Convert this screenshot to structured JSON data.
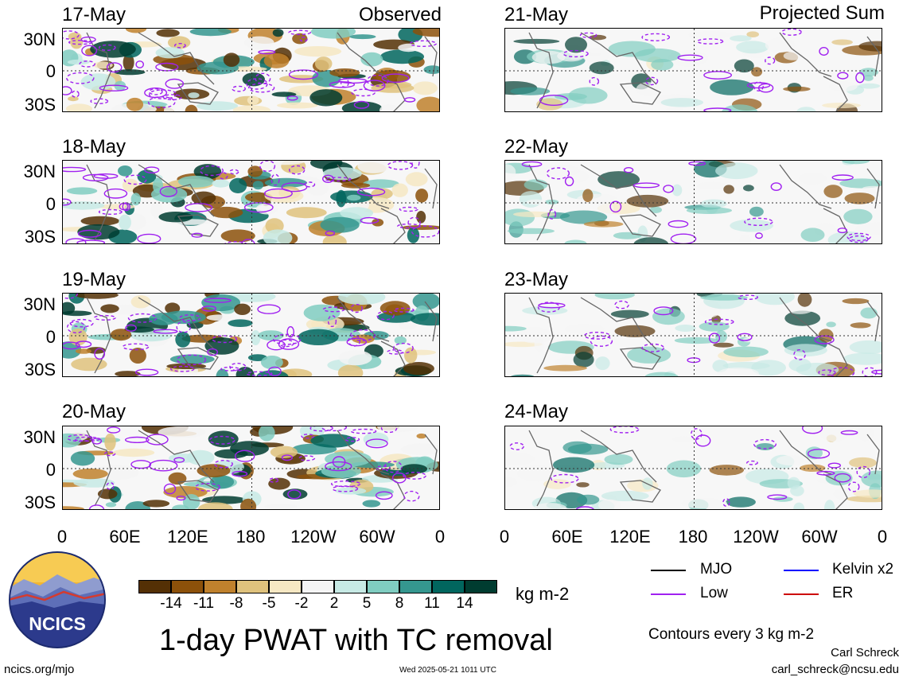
{
  "chart_data": {
    "type": "heatmap",
    "title": "1-day PWAT with TC removal",
    "units": "kg m-2",
    "contour_note": "Contours every 3 kg m-2",
    "columns": [
      {
        "label": "Observed",
        "dates": [
          "17-May",
          "18-May",
          "19-May",
          "20-May"
        ]
      },
      {
        "label": "Projected Sum",
        "dates": [
          "21-May",
          "22-May",
          "23-May",
          "24-May"
        ]
      }
    ],
    "y_ticks": [
      "30N",
      "0",
      "30S"
    ],
    "x_ticks": [
      "0",
      "60E",
      "120E",
      "180",
      "120W",
      "60W",
      "0"
    ],
    "colorbar": {
      "ticks": [
        "-14",
        "-11",
        "-8",
        "-5",
        "-2",
        "2",
        "5",
        "8",
        "11",
        "14"
      ],
      "colors": [
        "#543005",
        "#8c510a",
        "#bf812d",
        "#dfc27d",
        "#f6e8c3",
        "#f5f5f5",
        "#c7eae5",
        "#80cdc1",
        "#35978f",
        "#01665e",
        "#003c30"
      ]
    },
    "legend": [
      {
        "label": "MJO",
        "color": "#000000"
      },
      {
        "label": "Kelvin x2",
        "color": "#0000ff"
      },
      {
        "label": "Low",
        "color": "#a020f0"
      },
      {
        "label": "ER",
        "color": "#cc0000"
      }
    ]
  },
  "logo_text": "NCICS",
  "footer": {
    "left": "ncics.org/mjo",
    "center": "Wed 2025-05-21 1011 UTC",
    "author": "Carl Schreck",
    "email": "carl_schreck@ncsu.edu"
  }
}
